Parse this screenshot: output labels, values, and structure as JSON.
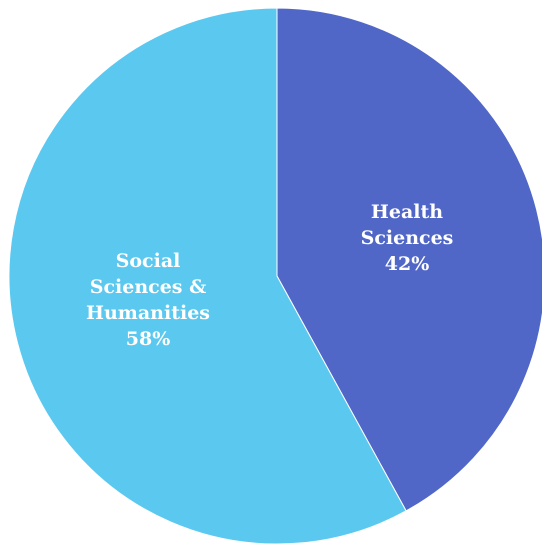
{
  "chart_data": {
    "type": "pie",
    "title": "",
    "start_angle_deg": 0,
    "direction": "clockwise",
    "slices": [
      {
        "label_lines": [
          "Health",
          "Sciences"
        ],
        "value": 42,
        "percent_label": "42%",
        "color": "#5067C8"
      },
      {
        "label_lines": [
          "Social",
          "Sciences &",
          "Humanities"
        ],
        "value": 58,
        "percent_label": "58%",
        "color": "#5BC8F0"
      }
    ]
  }
}
